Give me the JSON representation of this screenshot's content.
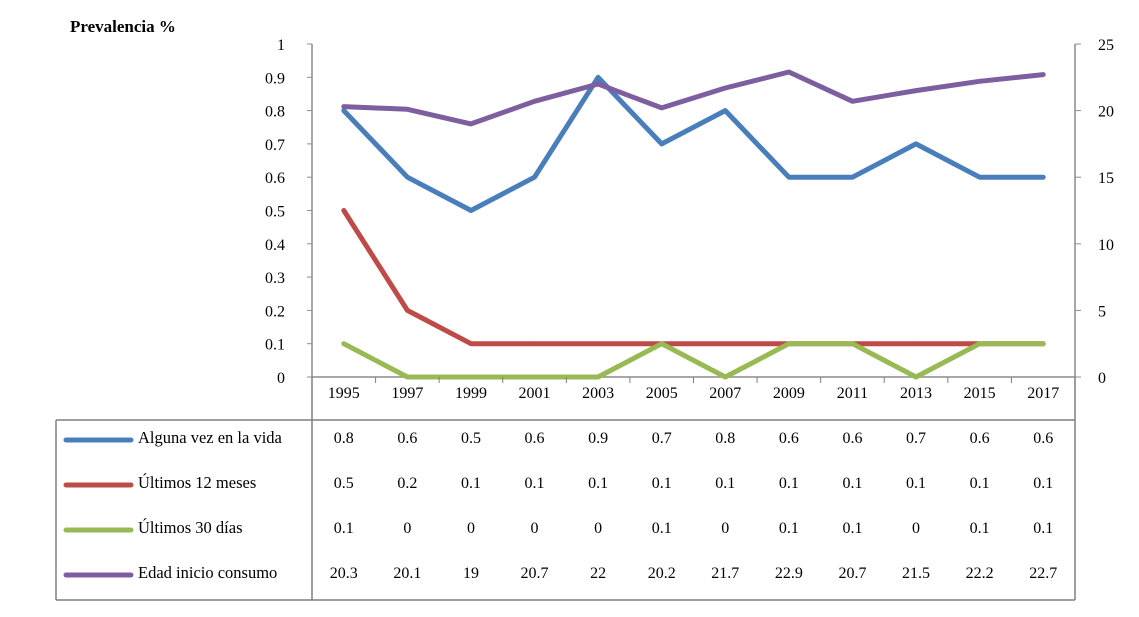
{
  "chart_data": {
    "type": "line",
    "ylabel": "Prevalencia %",
    "categories": [
      "1995",
      "1997",
      "1999",
      "2001",
      "2003",
      "2005",
      "2007",
      "2009",
      "2011",
      "2013",
      "2015",
      "2017"
    ],
    "ylim": [
      0,
      1
    ],
    "y_ticks": [
      "0",
      "0.1",
      "0.2",
      "0.3",
      "0.4",
      "0.5",
      "0.6",
      "0.7",
      "0.8",
      "0.9",
      "1"
    ],
    "y2lim": [
      0,
      25
    ],
    "y2_ticks": [
      "0",
      "5",
      "10",
      "15",
      "20",
      "25"
    ],
    "grid": false,
    "legend_position": "data-table below",
    "series": [
      {
        "name": "Alguna vez en la vida",
        "axis": "left",
        "color": "#4a7ebb",
        "values": [
          0.8,
          0.6,
          0.5,
          0.6,
          0.9,
          0.7,
          0.8,
          0.6,
          0.6,
          0.7,
          0.6,
          0.6
        ],
        "labels": [
          "0.8",
          "0.6",
          "0.5",
          "0.6",
          "0.9",
          "0.7",
          "0.8",
          "0.6",
          "0.6",
          "0.7",
          "0.6",
          "0.6"
        ]
      },
      {
        "name": "Últimos 12 meses",
        "axis": "left",
        "color": "#be4b48",
        "values": [
          0.5,
          0.2,
          0.1,
          0.1,
          0.1,
          0.1,
          0.1,
          0.1,
          0.1,
          0.1,
          0.1,
          0.1
        ],
        "labels": [
          "0.5",
          "0.2",
          "0.1",
          "0.1",
          "0.1",
          "0.1",
          "0.1",
          "0.1",
          "0.1",
          "0.1",
          "0.1",
          "0.1"
        ]
      },
      {
        "name": "Últimos 30 días",
        "axis": "left",
        "color": "#98b954",
        "values": [
          0.1,
          0,
          0,
          0,
          0,
          0.1,
          0,
          0.1,
          0.1,
          0,
          0.1,
          0.1
        ],
        "labels": [
          "0.1",
          "0",
          "0",
          "0",
          "0",
          "0.1",
          "0",
          "0.1",
          "0.1",
          "0",
          "0.1",
          "0.1"
        ]
      },
      {
        "name": "Edad inicio consumo",
        "axis": "right",
        "color": "#7d5fa0",
        "values": [
          20.3,
          20.1,
          19,
          20.7,
          22,
          20.2,
          21.7,
          22.9,
          20.7,
          21.5,
          22.2,
          22.7
        ],
        "labels": [
          "20.3",
          "20.1",
          "19",
          "20.7",
          "22",
          "20.2",
          "21.7",
          "22.9",
          "20.7",
          "21.5",
          "22.2",
          "22.7"
        ]
      }
    ]
  }
}
